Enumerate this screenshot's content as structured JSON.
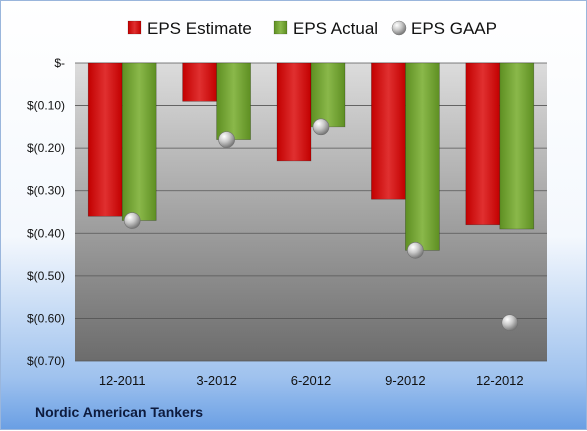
{
  "company": "Nordic American Tankers",
  "chart_data": {
    "type": "bar",
    "categories": [
      "12-2011",
      "3-2012",
      "6-2012",
      "9-2012",
      "12-2012"
    ],
    "series": [
      {
        "name": "EPS Estimate",
        "kind": "bar",
        "color": "#cc1111",
        "values": [
          -0.36,
          -0.09,
          -0.23,
          -0.32,
          -0.38
        ]
      },
      {
        "name": "EPS Actual",
        "kind": "bar",
        "color": "#6a9a2a",
        "values": [
          -0.37,
          -0.18,
          -0.15,
          -0.44,
          -0.39
        ]
      },
      {
        "name": "EPS GAAP",
        "kind": "marker",
        "color": "#b8b8b8",
        "values": [
          -0.37,
          -0.18,
          -0.15,
          -0.44,
          -0.61
        ]
      }
    ],
    "y_ticks": [
      {
        "value": 0,
        "label": "$-"
      },
      {
        "value": -0.1,
        "label": "$(0.10)"
      },
      {
        "value": -0.2,
        "label": "$(0.20)"
      },
      {
        "value": -0.3,
        "label": "$(0.30)"
      },
      {
        "value": -0.4,
        "label": "$(0.40)"
      },
      {
        "value": -0.5,
        "label": "$(0.50)"
      },
      {
        "value": -0.6,
        "label": "$(0.60)"
      },
      {
        "value": -0.7,
        "label": "$(0.70)"
      }
    ],
    "ylim": [
      -0.7,
      0
    ],
    "grid": true,
    "legend_position": "top"
  }
}
